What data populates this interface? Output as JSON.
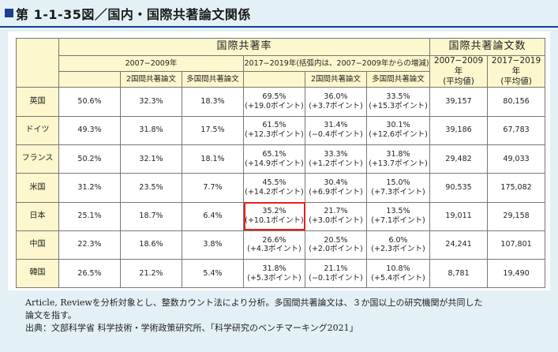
{
  "title": "第 1-1-35図／国内・国際共著論文関係",
  "headers": {
    "rate_group": "国際共著率",
    "count_group": "国際共著論文数",
    "period1": "2007−2009年",
    "period2": "2017−2019年(括弧内は、2007−2009年からの増減)",
    "col_two": "2国間共著論文",
    "col_multi": "多国間共著論文",
    "count_p1_line1": "2007−2009年",
    "count_p1_line2": "(平均値)",
    "count_p2_line1": "2017−2019年",
    "count_p2_line2": "(平均値)"
  },
  "rows": [
    {
      "country": "英国",
      "r1": "50.6%",
      "t1": "32.3%",
      "m1": "18.3%",
      "r2": "69.5%",
      "r2d": "(+19.0ポイント)",
      "t2": "36.0%",
      "t2d": "(+3.7ポイント)",
      "m2": "33.5%",
      "m2d": "(+15.3ポイント)",
      "c1": "39,157",
      "c2": "80,156"
    },
    {
      "country": "ドイツ",
      "r1": "49.3%",
      "t1": "31.8%",
      "m1": "17.5%",
      "r2": "61.5%",
      "r2d": "(+12.3ポイント)",
      "t2": "31.4%",
      "t2d": "(−0.4ポイント)",
      "m2": "30.1%",
      "m2d": "(+12.6ポイント)",
      "c1": "39,186",
      "c2": "67,783"
    },
    {
      "country": "フランス",
      "r1": "50.2%",
      "t1": "32.1%",
      "m1": "18.1%",
      "r2": "65.1%",
      "r2d": "(+14.9ポイント)",
      "t2": "33.3%",
      "t2d": "(+1.2ポイント)",
      "m2": "31.8%",
      "m2d": "(+13.7ポイント)",
      "c1": "29,482",
      "c2": "49,033"
    },
    {
      "country": "米国",
      "r1": "31.2%",
      "t1": "23.5%",
      "m1": "7.7%",
      "r2": "45.5%",
      "r2d": "(+14.2ポイント)",
      "t2": "30.4%",
      "t2d": "(+6.9ポイント)",
      "m2": "15.0%",
      "m2d": "(+7.3ポイント)",
      "c1": "90,535",
      "c2": "175,082"
    },
    {
      "country": "日本",
      "r1": "25.1%",
      "t1": "18.7%",
      "m1": "6.4%",
      "r2": "35.2%",
      "r2d": "(+10.1ポイント)",
      "t2": "21.7%",
      "t2d": "(+3.0ポイント)",
      "m2": "13.5%",
      "m2d": "(+7.1ポイント)",
      "c1": "19,011",
      "c2": "29,158",
      "highlight": true
    },
    {
      "country": "中国",
      "r1": "22.3%",
      "t1": "18.6%",
      "m1": "3.8%",
      "r2": "26.6%",
      "r2d": "(+4.3ポイント)",
      "t2": "20.5%",
      "t2d": "(+2.0ポイント)",
      "m2": "6.0%",
      "m2d": "(+2.3ポイント)",
      "c1": "24,241",
      "c2": "107,801"
    },
    {
      "country": "韓国",
      "r1": "26.5%",
      "t1": "21.2%",
      "m1": "5.4%",
      "r2": "31.8%",
      "r2d": "(+5.3ポイント)",
      "t2": "21.1%",
      "t2d": "(−0.1ポイント)",
      "m2": "10.8%",
      "m2d": "(+5.4ポイント)",
      "c1": "8,781",
      "c2": "19,490"
    }
  ],
  "notes": {
    "line1": "Article, Reviewを分析対象とし、整数カウント法により分析。多国間共著論文は、３か国以上の研究機関が共同した",
    "line2": "論文を指す。",
    "source": "出典：文部科学省 科学技術・学術政策研究所、「科学研究のベンチマーキング2021」"
  },
  "colors": {
    "header_fill": "#fcf7cc",
    "background": "#e3f1f7",
    "accent": "#1a3f8f",
    "highlight": "#e8201c"
  }
}
